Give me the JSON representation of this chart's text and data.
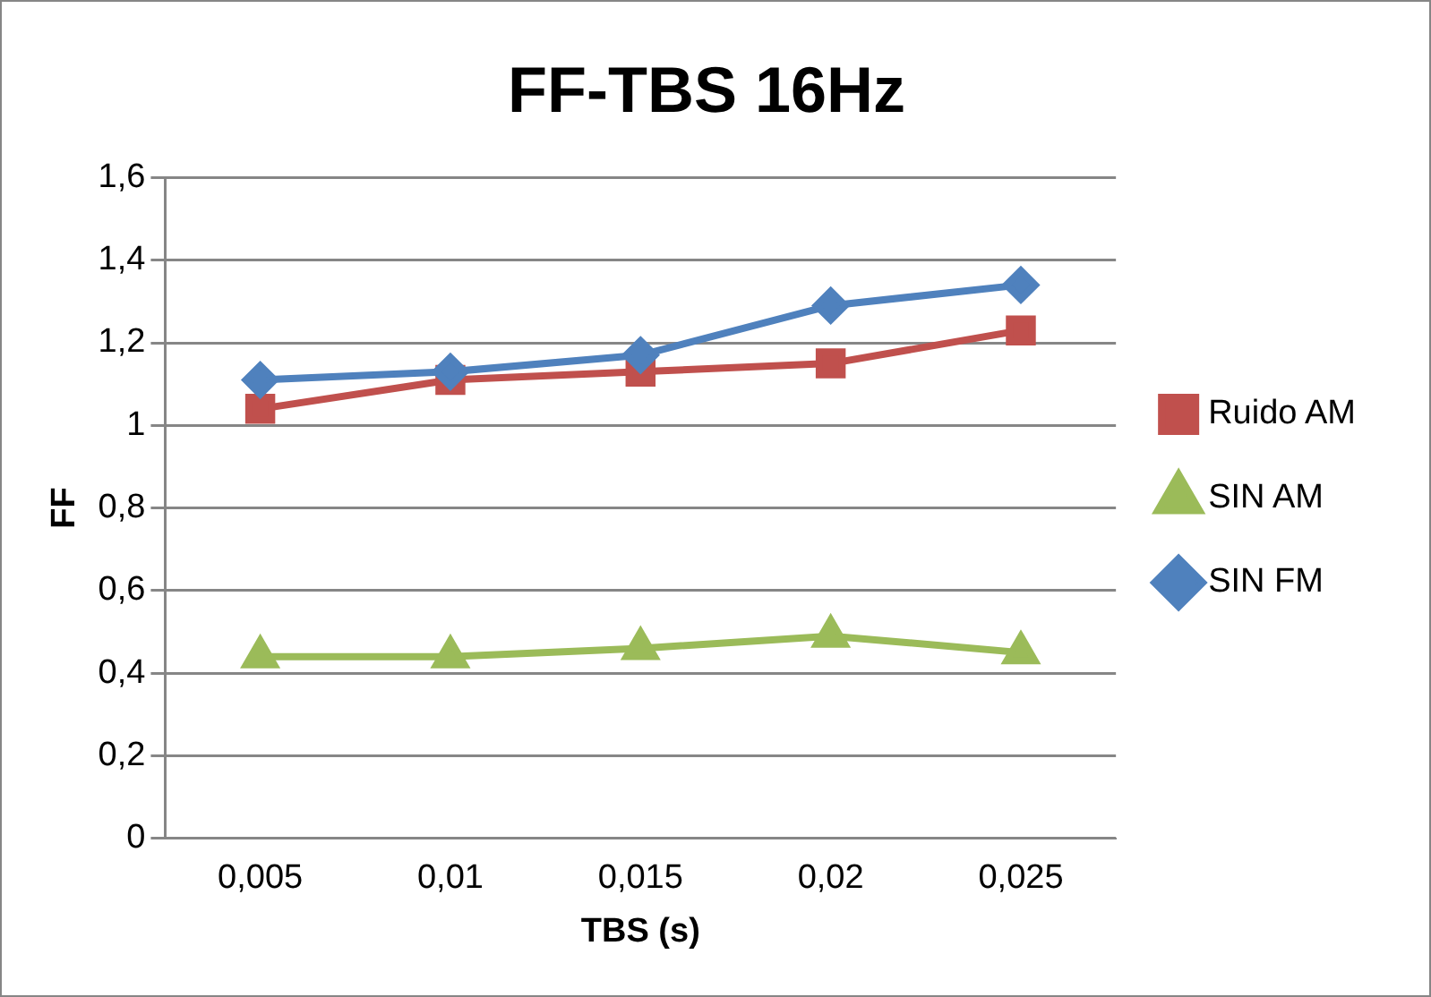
{
  "chart_data": {
    "type": "line",
    "title": "FF-TBS 16Hz",
    "xlabel": "TBS (s)",
    "ylabel": "FF",
    "categories": [
      "0,005",
      "0,01",
      "0,015",
      "0,02",
      "0,025"
    ],
    "series": [
      {
        "name": "Ruido AM",
        "color": "#c0504d",
        "marker": "square",
        "values": [
          1.04,
          1.11,
          1.13,
          1.15,
          1.23
        ]
      },
      {
        "name": "SIN AM",
        "color": "#9bbb59",
        "marker": "triangle",
        "values": [
          0.44,
          0.44,
          0.46,
          0.49,
          0.45
        ]
      },
      {
        "name": "SIN FM",
        "color": "#4f81bd",
        "marker": "diamond",
        "values": [
          1.11,
          1.13,
          1.17,
          1.29,
          1.34
        ]
      }
    ],
    "ylim": [
      0,
      1.6
    ],
    "yticks": [
      0,
      {
        "value": 0.2,
        "label": "0,2"
      },
      {
        "value": 0.4,
        "label": "0,4"
      },
      {
        "value": 0.6,
        "label": "0,6"
      },
      {
        "value": 0.8,
        "label": "0,8"
      },
      1,
      {
        "value": 1.2,
        "label": "1,2"
      },
      {
        "value": 1.4,
        "label": "1,4"
      },
      {
        "value": 1.6,
        "label": "1,6"
      }
    ],
    "grid": "y",
    "legend": "right"
  }
}
